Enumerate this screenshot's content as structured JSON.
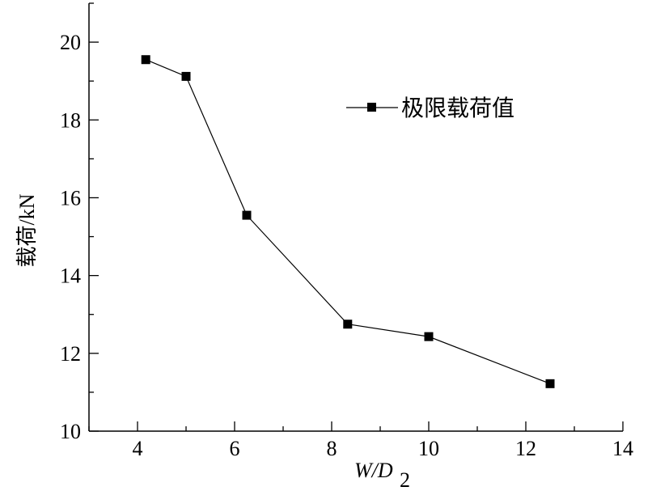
{
  "chart_data": {
    "type": "line",
    "x": [
      4.17,
      5.0,
      6.25,
      8.33,
      10.0,
      12.5
    ],
    "series": [
      {
        "name": "极限载荷值",
        "values": [
          19.55,
          19.12,
          15.55,
          12.75,
          12.43,
          11.22
        ]
      }
    ],
    "xlabel_main": "W/D",
    "xlabel_sub": "2",
    "ylabel": "载荷/kN",
    "xlim": [
      3,
      14
    ],
    "ylim": [
      10,
      21
    ],
    "xticks": [
      "4",
      "6",
      "8",
      "10",
      "12",
      "14"
    ],
    "yticks": [
      "10",
      "12",
      "14",
      "16",
      "18",
      "20"
    ],
    "legend_position": "top-right",
    "grid": false,
    "marker": "square",
    "color": "#000000"
  }
}
